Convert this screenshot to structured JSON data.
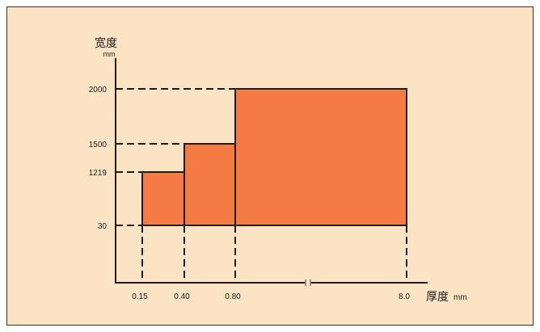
{
  "colors": {
    "page_background": "#FFFFFF",
    "panel_background": "#FBE3C4",
    "region_fill": "#F47B43",
    "line": "#1F1B18"
  },
  "chart_data": {
    "type": "area",
    "ylabel": "宽度",
    "yunit": "mm",
    "xlabel": "厚度",
    "xunit": "mm",
    "y_ticks": [
      {
        "value": 2000,
        "label": "2000"
      },
      {
        "value": 1500,
        "label": "1500"
      },
      {
        "value": 1219,
        "label": "1219"
      },
      {
        "value": 30,
        "label": "30"
      }
    ],
    "x_ticks": [
      {
        "value": 0.15,
        "label": "0.15"
      },
      {
        "value": 0.4,
        "label": "0.40"
      },
      {
        "value": 0.8,
        "label": "0.80"
      },
      {
        "value": 8.0,
        "label": "8.0"
      }
    ],
    "regions": [
      {
        "x": [
          0.15,
          0.4
        ],
        "y": [
          30,
          1219
        ]
      },
      {
        "x": [
          0.4,
          0.8
        ],
        "y": [
          30,
          1500
        ]
      },
      {
        "x": [
          0.8,
          8.0
        ],
        "y": [
          30,
          2000
        ]
      }
    ],
    "x_axis_break": true,
    "grid": false
  }
}
